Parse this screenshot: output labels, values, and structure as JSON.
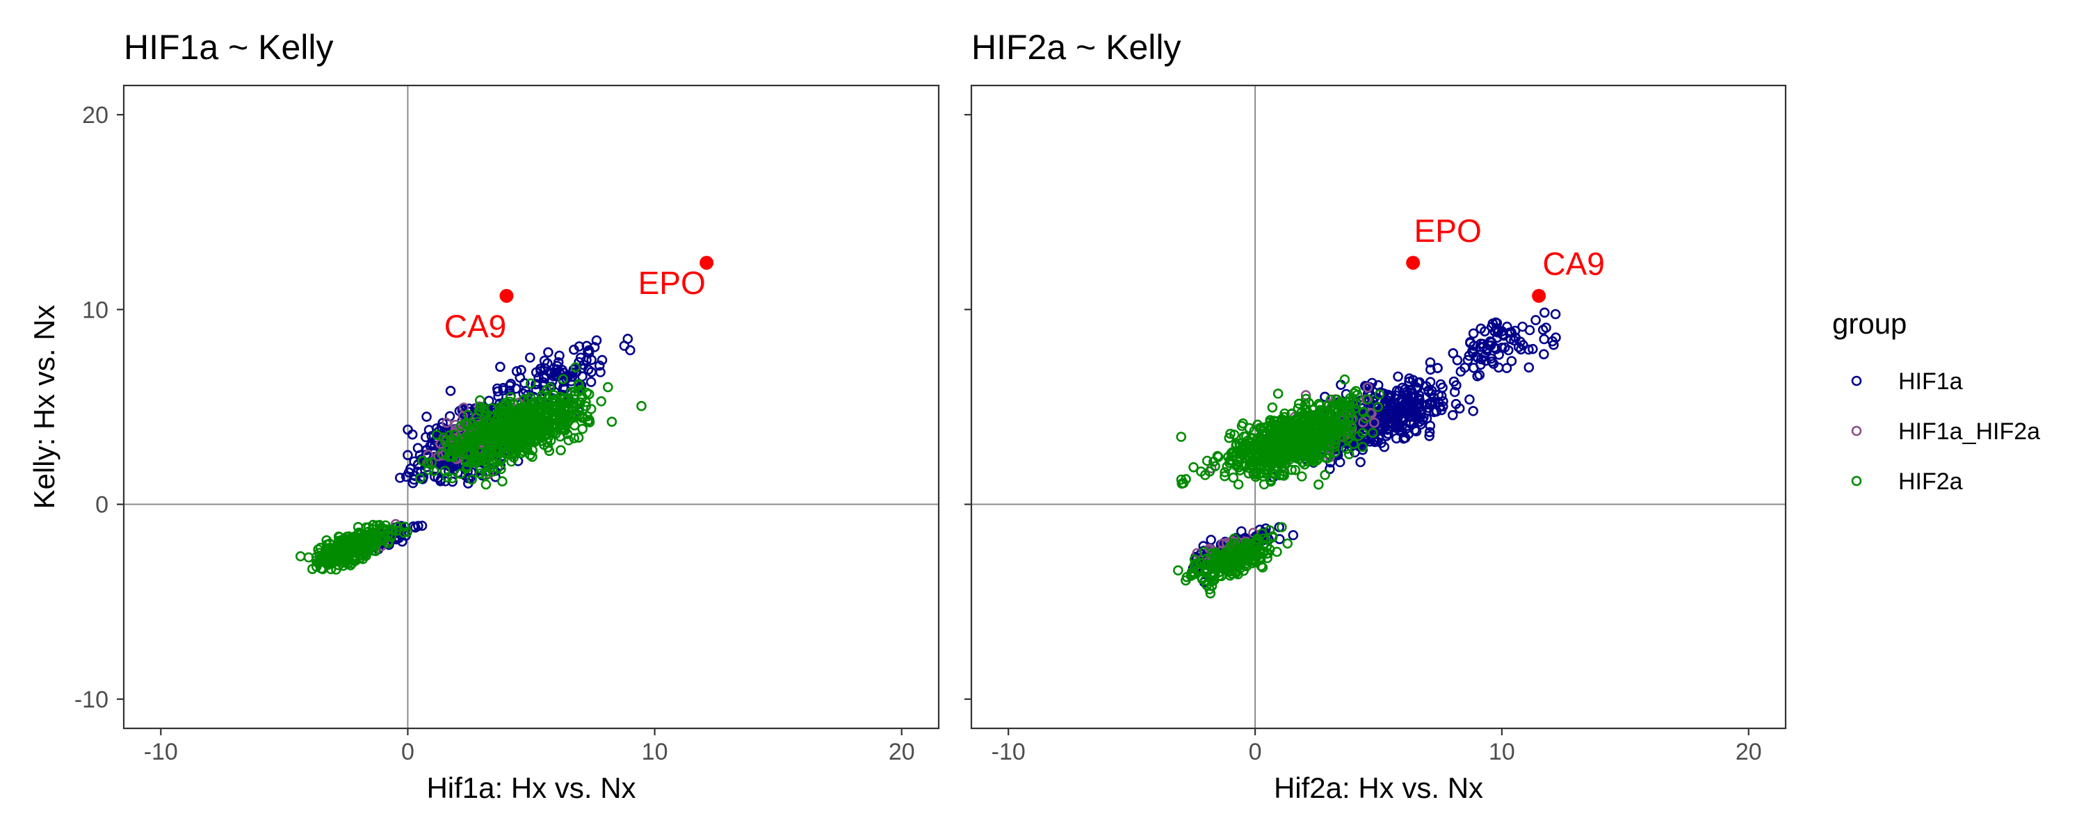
{
  "chart_data": [
    {
      "type": "scatter",
      "title": "HIF1a ~ Kelly",
      "xlabel": "Hif1a: Hx vs. Nx",
      "ylabel": "Kelly: Hx vs. Nx",
      "xlim": [
        -11.5,
        21.5
      ],
      "ylim": [
        -11.5,
        21.5
      ],
      "xticks": [
        -10,
        0,
        10,
        20
      ],
      "yticks": [
        -10,
        0,
        10,
        20
      ],
      "xtick_labels": [
        "-10",
        "0",
        "10",
        "20"
      ],
      "ytick_labels": [
        "-10",
        "0",
        "10",
        "20"
      ],
      "reference_lines": {
        "x": 0,
        "y": 0
      },
      "grid": false,
      "series": [
        {
          "name": "HIF1a",
          "color": "#00008b",
          "clusters": [
            {
              "label": "upper-right main cloud",
              "center": [
                2.5,
                3.2
              ],
              "spread": [
                1.9,
                1.9
              ],
              "count": 520
            },
            {
              "label": "upper-right tail",
              "center": [
                6.0,
                6.5
              ],
              "spread": [
                2.2,
                1.8
              ],
              "count": 110
            },
            {
              "label": "lower-left cloud",
              "center": [
                -1.0,
                -1.8
              ],
              "spread": [
                1.0,
                0.5
              ],
              "count": 70
            }
          ]
        },
        {
          "name": "HIF1a_HIF2a",
          "color": "#8b4f8b",
          "clusters": [
            {
              "label": "upper-right cloud",
              "center": [
                2.5,
                3.3
              ],
              "spread": [
                1.7,
                1.5
              ],
              "count": 65
            },
            {
              "label": "lower-left cloud",
              "center": [
                -1.6,
                -2.0
              ],
              "spread": [
                1.0,
                0.6
              ],
              "count": 30
            }
          ]
        },
        {
          "name": "HIF2a",
          "color": "#008b00",
          "clusters": [
            {
              "label": "diagonal band",
              "center": [
                4.5,
                3.8
              ],
              "spread": [
                2.6,
                2.0
              ],
              "count": 620
            },
            {
              "label": "lower-left cloud",
              "center": [
                -2.2,
                -2.2
              ],
              "spread": [
                1.4,
                0.9
              ],
              "count": 300
            }
          ]
        }
      ],
      "highlights": [
        {
          "label": "CA9",
          "x": 4.0,
          "y": 10.7,
          "color": "#ff0000"
        },
        {
          "label": "EPO",
          "x": 12.1,
          "y": 12.4,
          "color": "#ff0000"
        }
      ]
    },
    {
      "type": "scatter",
      "title": "HIF2a ~ Kelly",
      "xlabel": "Hif2a: Hx vs. Nx",
      "ylabel": "",
      "xlim": [
        -11.5,
        21.5
      ],
      "ylim": [
        -11.5,
        21.5
      ],
      "xticks": [
        -10,
        0,
        10,
        20
      ],
      "yticks": [
        -10,
        0,
        10,
        20
      ],
      "xtick_labels": [
        "-10",
        "0",
        "10",
        "20"
      ],
      "ytick_labels": [],
      "reference_lines": {
        "x": 0,
        "y": 0
      },
      "grid": false,
      "series": [
        {
          "name": "HIF1a",
          "color": "#00008b",
          "clusters": [
            {
              "label": "upper-right cloud",
              "center": [
                5.0,
                4.5
              ],
              "spread": [
                2.6,
                1.9
              ],
              "count": 380
            },
            {
              "label": "upper-right tail",
              "center": [
                9.5,
                8.0
              ],
              "spread": [
                2.0,
                1.6
              ],
              "count": 90
            },
            {
              "label": "lower-left cloud",
              "center": [
                -1.0,
                -2.3
              ],
              "spread": [
                1.6,
                0.8
              ],
              "count": 120
            }
          ]
        },
        {
          "name": "HIF1a_HIF2a",
          "color": "#8b4f8b",
          "clusters": [
            {
              "label": "upper-right cloud",
              "center": [
                2.5,
                3.8
              ],
              "spread": [
                2.2,
                1.7
              ],
              "count": 55
            },
            {
              "label": "lower-left cloud",
              "center": [
                -1.2,
                -2.4
              ],
              "spread": [
                0.9,
                0.7
              ],
              "count": 35
            }
          ]
        },
        {
          "name": "HIF2a",
          "color": "#008b00",
          "clusters": [
            {
              "label": "upper-right cloud",
              "center": [
                1.5,
                3.3
              ],
              "spread": [
                2.4,
                2.0
              ],
              "count": 720
            },
            {
              "label": "lower-left cloud",
              "center": [
                -0.8,
                -2.8
              ],
              "spread": [
                1.6,
                1.1
              ],
              "count": 220
            }
          ]
        }
      ],
      "highlights": [
        {
          "label": "EPO",
          "x": 6.4,
          "y": 12.4,
          "color": "#ff0000"
        },
        {
          "label": "CA9",
          "x": 11.5,
          "y": 10.7,
          "color": "#ff0000"
        }
      ]
    }
  ],
  "legend": {
    "title": "group",
    "items": [
      {
        "label": "HIF1a",
        "color": "#00008b"
      },
      {
        "label": "HIF1a_HIF2a",
        "color": "#8b4f8b"
      },
      {
        "label": "HIF2a",
        "color": "#008b00"
      }
    ]
  }
}
